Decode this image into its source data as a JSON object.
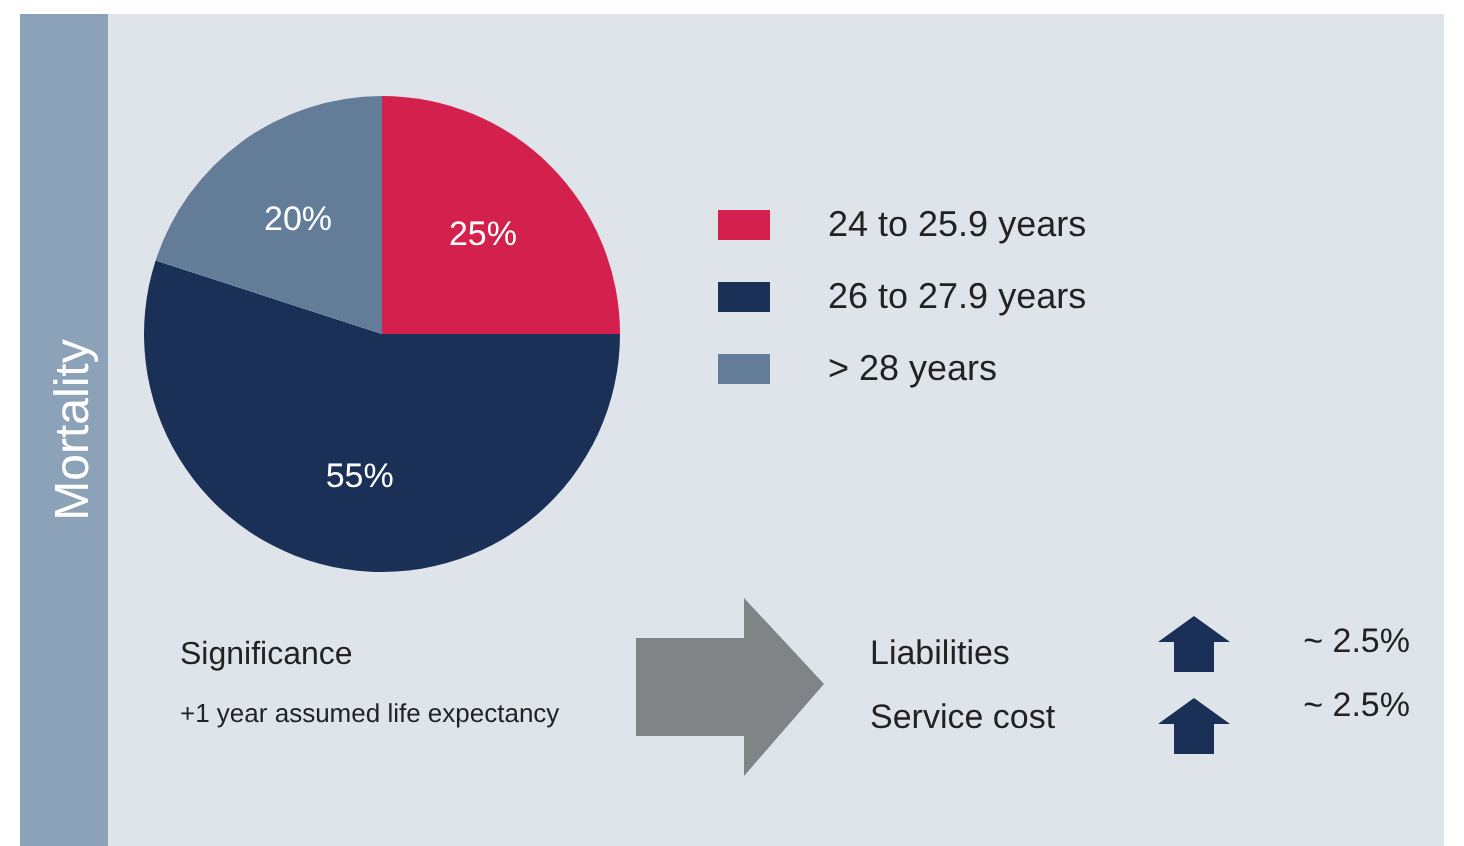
{
  "chart_data": {
    "type": "pie",
    "title": "Mortality",
    "categories": [
      "24 to 25.9 years",
      "26 to 27.9 years",
      "> 28 years"
    ],
    "values": [
      25,
      55,
      20
    ],
    "colors": [
      "#d4204c",
      "#1a3057",
      "#637d99"
    ],
    "value_labels": [
      "25%",
      "55%",
      "20%"
    ],
    "legend": "right",
    "annotations": [
      "Significance",
      "+1 year assumed life expectancy",
      "Liabilities",
      "~ 2.5%",
      "Service cost",
      "~ 2.5%"
    ]
  }
}
